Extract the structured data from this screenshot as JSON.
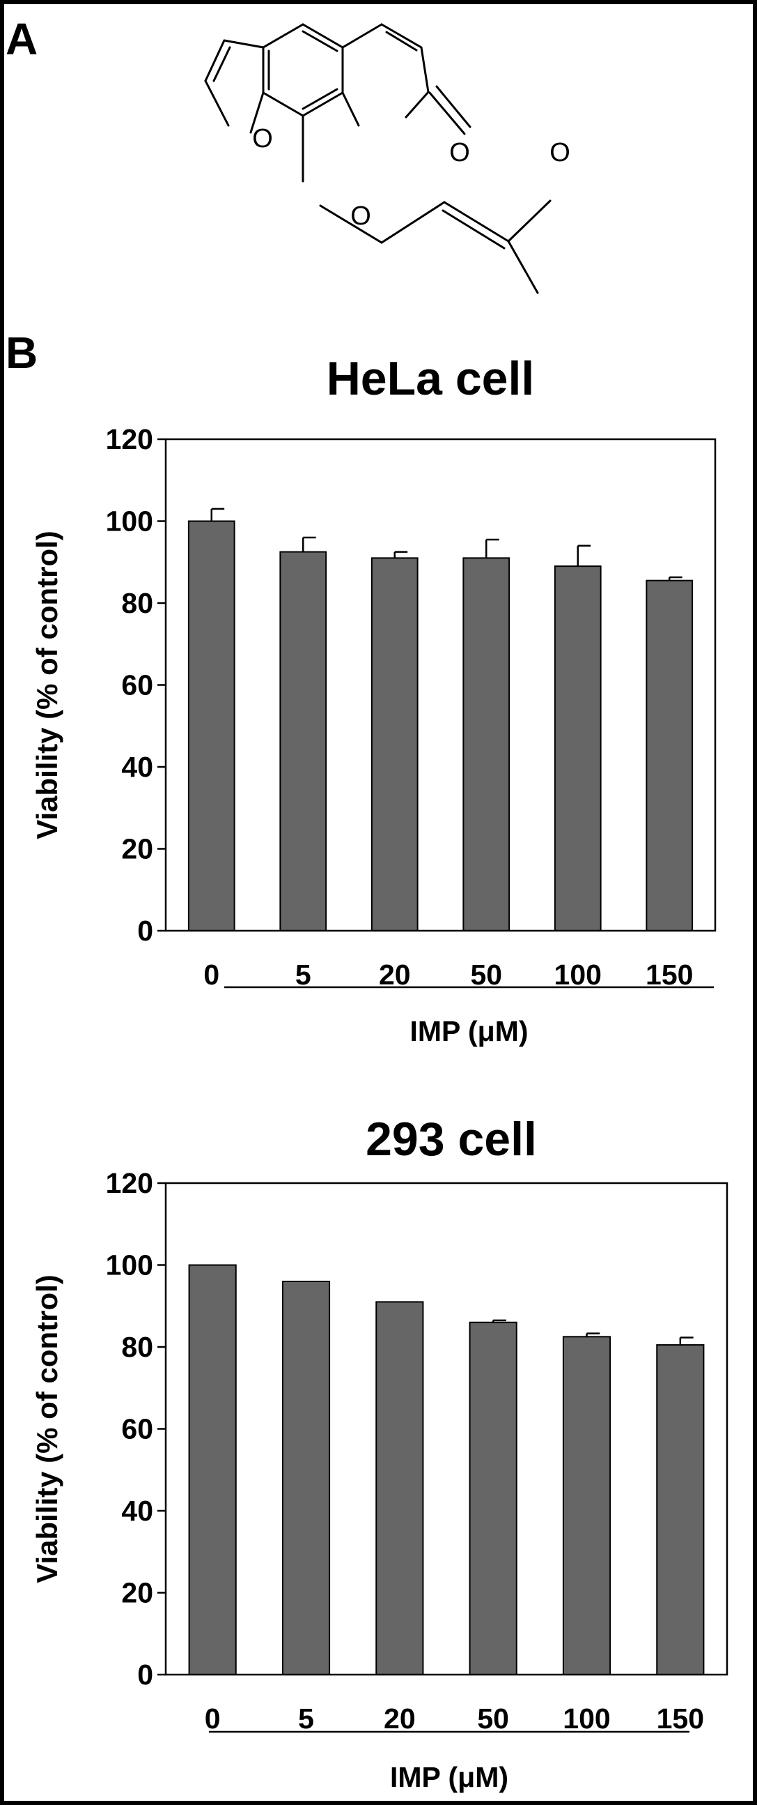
{
  "panel_a": {
    "letter": "A",
    "atom_labels": [
      "O",
      "O",
      "O",
      "O"
    ]
  },
  "panel_b": {
    "letter": "B"
  },
  "colors": {
    "bar": "#666666",
    "ink": "#000000",
    "background": "#ffffff"
  },
  "chart_data": [
    {
      "type": "bar",
      "title": "HeLa cell",
      "categories": [
        "0",
        "5",
        "20",
        "50",
        "100",
        "150"
      ],
      "values": [
        100,
        92.5,
        91,
        91,
        89,
        85.5
      ],
      "errors": [
        3,
        3.5,
        1.5,
        4.5,
        5,
        0.8
      ],
      "xlabel": "IMP (μM)",
      "ylabel": "Viability (% of control)",
      "ylim": [
        0,
        120
      ],
      "yticks": [
        0,
        20,
        40,
        60,
        80,
        100,
        120
      ],
      "grid": false
    },
    {
      "type": "bar",
      "title": "293 cell",
      "categories": [
        "0",
        "5",
        "20",
        "50",
        "100",
        "150"
      ],
      "values": [
        100,
        96,
        91,
        86,
        82.5,
        80.5
      ],
      "errors": [
        0,
        0,
        0,
        0.5,
        0.8,
        1.8
      ],
      "xlabel": "IMP (μM)",
      "ylabel": "Viability (% of control)",
      "ylim": [
        0,
        120
      ],
      "yticks": [
        0,
        20,
        40,
        60,
        80,
        100,
        120
      ],
      "grid": false
    }
  ]
}
